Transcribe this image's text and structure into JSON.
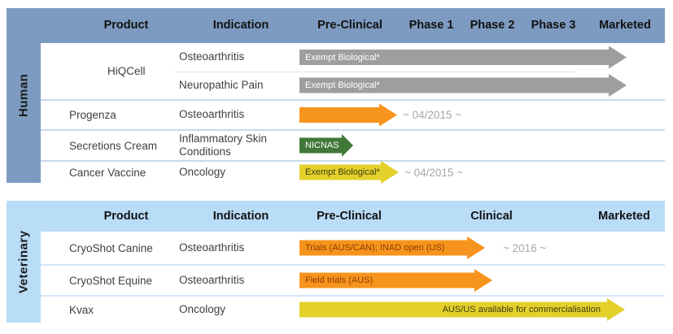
{
  "human": {
    "label": "Human",
    "columns": [
      "Product",
      "Indication",
      "Pre-Clinical",
      "Phase 1",
      "Phase 2",
      "Phase 3",
      "Marketed"
    ],
    "rows": [
      {
        "product": "HiQCell",
        "indication": "Osteoarthritis",
        "arrow_label": "Exempt Biological*",
        "arrow_color": "gray",
        "stage_span": "Pre-Clinical to Marketed"
      },
      {
        "product": "HiQCell",
        "indication": "Neuropathic Pain",
        "arrow_label": "Exempt Biological*",
        "arrow_color": "gray",
        "stage_span": "Pre-Clinical to Marketed"
      },
      {
        "product": "Progenza",
        "indication": "Osteoarthritis",
        "arrow_label": "",
        "arrow_color": "orange",
        "milestone": "~ 04/2015 ~",
        "stage_span": "Pre-Clinical"
      },
      {
        "product": "Secretions Cream",
        "indication": "Inflammatory Skin Conditions",
        "arrow_label": "NICNAS",
        "arrow_color": "green",
        "stage_span": "Pre-Clinical"
      },
      {
        "product": "Cancer Vaccine",
        "indication": "Oncology",
        "arrow_label": "Exempt Biological*",
        "arrow_color": "yellow",
        "milestone": "~ 04/2015 ~",
        "stage_span": "Pre-Clinical"
      }
    ]
  },
  "veterinary": {
    "label": "Veterinary",
    "columns": [
      "Product",
      "Indication",
      "Pre-Clinical",
      "Clinical",
      "Marketed"
    ],
    "rows": [
      {
        "product": "CryoShot Canine",
        "indication": "Osteoarthritis",
        "arrow_label": "Trials (AUS/CAN); INAD open (US)",
        "arrow_color": "orange",
        "milestone": "~ 2016 ~",
        "stage_span": "Pre-Clinical to Clinical"
      },
      {
        "product": "CryoShot Equine",
        "indication": "Osteoarthritis",
        "arrow_label": "Field trials (AUS)",
        "arrow_color": "orange",
        "stage_span": "Pre-Clinical to Clinical"
      },
      {
        "product": "Kvax",
        "indication": "Oncology",
        "arrow_label": "AUS/US available for commercialisation",
        "arrow_color": "yellow",
        "stage_span": "Pre-Clinical to Marketed"
      }
    ]
  },
  "colors": {
    "human_band": "#7d9bc1",
    "veterinary_band": "#b9dcf7",
    "arrow_gray": "#9e9e9c",
    "arrow_orange": "#f7941d",
    "arrow_green": "#41783a",
    "arrow_yellow": "#e4d02b",
    "milestone_text": "#a6a6a6"
  }
}
